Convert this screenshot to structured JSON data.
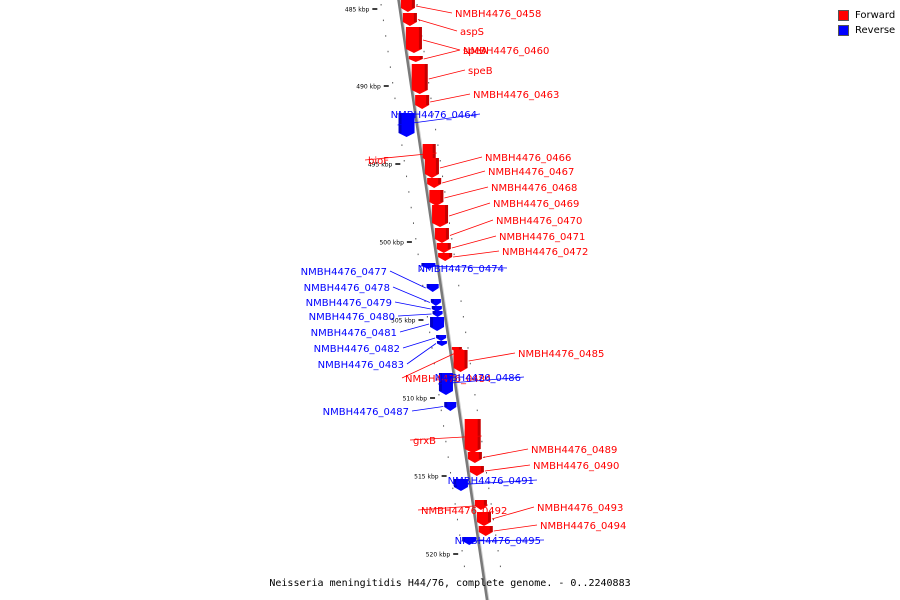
{
  "caption": "Neisseria meningitidis H44/76, complete genome. - 0..2240883",
  "legend": [
    {
      "label": "Forward",
      "color": "#ff0000"
    },
    {
      "label": "Reverse",
      "color": "#0000ff"
    }
  ],
  "colors": {
    "forward": "#ff0000",
    "reverse": "#0000ff",
    "backbone": "#808080"
  },
  "scale": {
    "unit": "kbp",
    "ticks": [
      "485 kbp",
      "490 kbp",
      "495 kbp",
      "500 kbp",
      "505 kbp",
      "510 kbp",
      "515 kbp",
      "520 kbp"
    ]
  },
  "genes": [
    {
      "name": "NMBH4476_0458",
      "strand": "forward"
    },
    {
      "name": "aspS",
      "strand": "forward"
    },
    {
      "name": "NMBH4476_0460",
      "strand": "forward"
    },
    {
      "name": "speA",
      "strand": "forward"
    },
    {
      "name": "speB",
      "strand": "forward"
    },
    {
      "name": "NMBH4476_0463",
      "strand": "forward"
    },
    {
      "name": "NMBH4476_0464",
      "strand": "reverse"
    },
    {
      "name": "bioF",
      "strand": "forward"
    },
    {
      "name": "NMBH4476_0466",
      "strand": "forward"
    },
    {
      "name": "NMBH4476_0467",
      "strand": "forward"
    },
    {
      "name": "NMBH4476_0468",
      "strand": "forward"
    },
    {
      "name": "NMBH4476_0469",
      "strand": "forward"
    },
    {
      "name": "NMBH4476_0470",
      "strand": "forward"
    },
    {
      "name": "NMBH4476_0471",
      "strand": "forward"
    },
    {
      "name": "NMBH4476_0472",
      "strand": "forward"
    },
    {
      "name": "NMBH4476_0474",
      "strand": "reverse"
    },
    {
      "name": "NMBH4476_0477",
      "strand": "reverse"
    },
    {
      "name": "NMBH4476_0478",
      "strand": "reverse"
    },
    {
      "name": "NMBH4476_0479",
      "strand": "reverse"
    },
    {
      "name": "NMBH4476_0480",
      "strand": "reverse"
    },
    {
      "name": "NMBH4476_0481",
      "strand": "reverse"
    },
    {
      "name": "NMBH4476_0482",
      "strand": "reverse"
    },
    {
      "name": "NMBH4476_0483",
      "strand": "reverse"
    },
    {
      "name": "NMBH4476_0484",
      "strand": "forward"
    },
    {
      "name": "NMBH4476_0485",
      "strand": "forward"
    },
    {
      "name": "NMBH4476_0486",
      "strand": "reverse"
    },
    {
      "name": "NMBH4476_0487",
      "strand": "reverse"
    },
    {
      "name": "grxB",
      "strand": "forward"
    },
    {
      "name": "NMBH4476_0489",
      "strand": "forward"
    },
    {
      "name": "NMBH4476_0490",
      "strand": "forward"
    },
    {
      "name": "NMBH4476_0491",
      "strand": "reverse"
    },
    {
      "name": "NMBH4476_0492",
      "strand": "forward"
    },
    {
      "name": "NMBH4476_0493",
      "strand": "forward"
    },
    {
      "name": "NMBH4476_0494",
      "strand": "forward"
    },
    {
      "name": "NMBH4476_0495",
      "strand": "reverse"
    }
  ]
}
